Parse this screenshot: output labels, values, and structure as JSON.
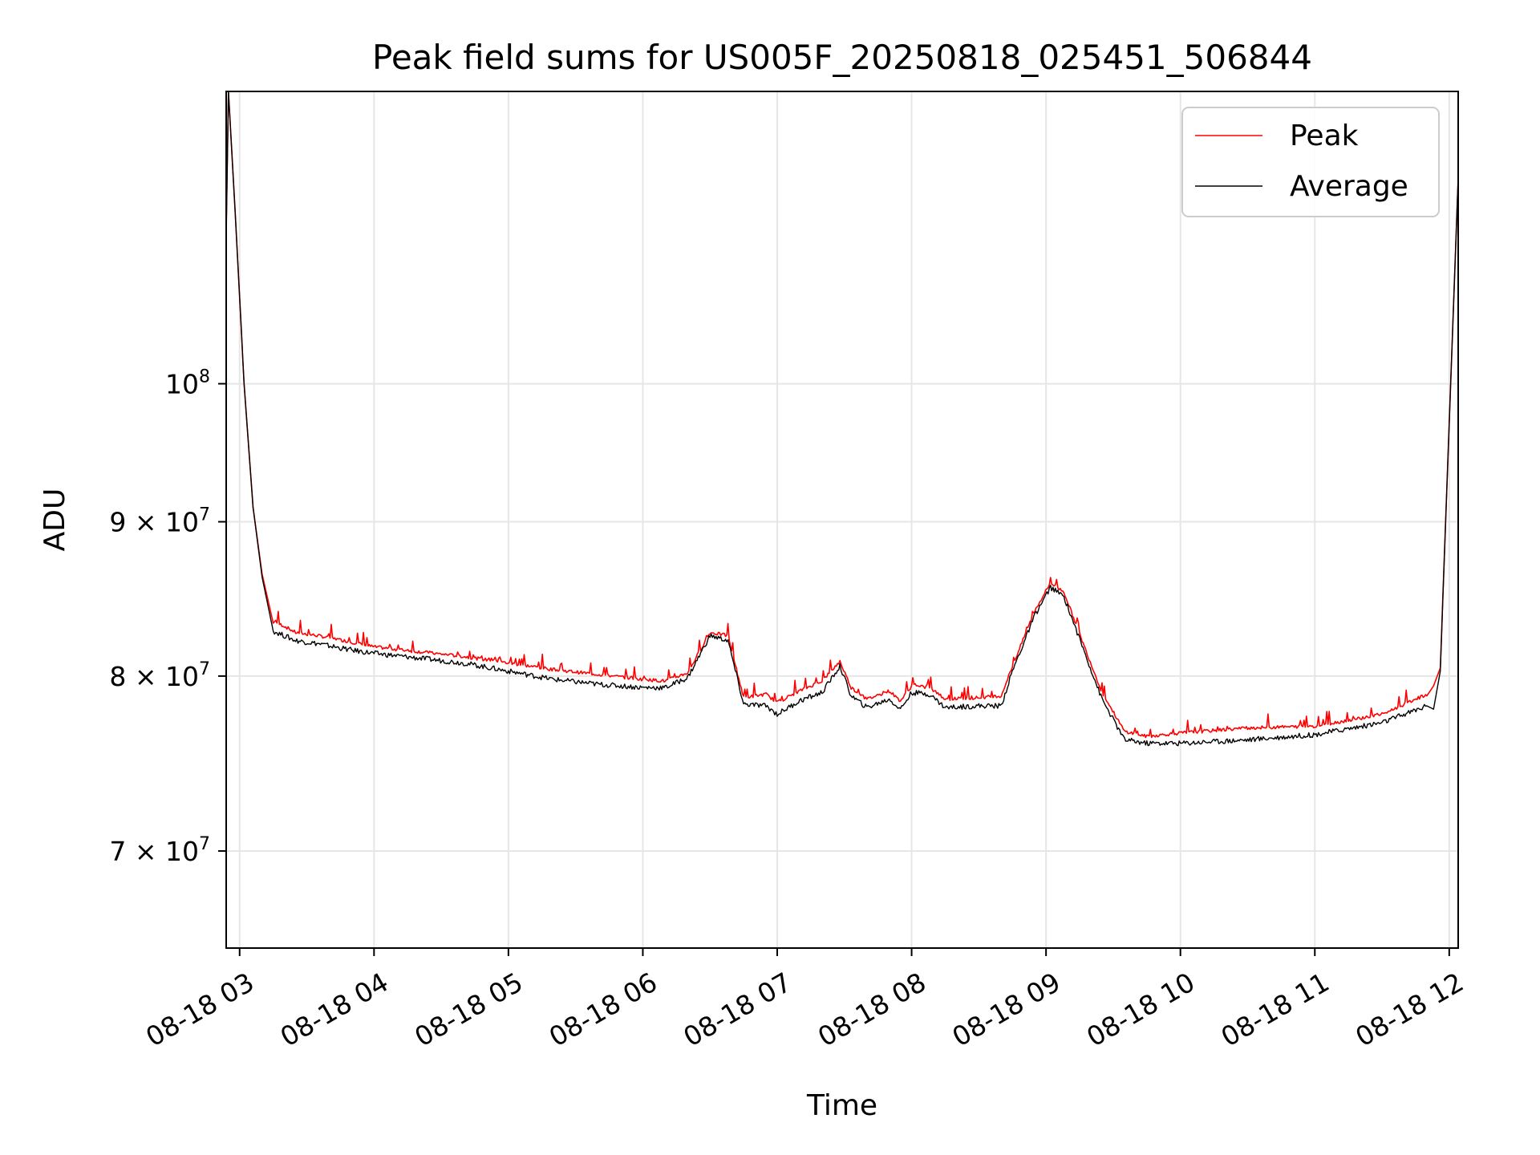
{
  "chart_data": {
    "type": "line",
    "title": "Peak field sums for US005F_20250818_025451_506844",
    "xlabel": "Time",
    "ylabel": "ADU",
    "yscale": "log",
    "grid": true,
    "legend_position": "top-right",
    "x_ticks": [
      "08-18 03",
      "08-18 04",
      "08-18 05",
      "08-18 06",
      "08-18 07",
      "08-18 08",
      "08-18 09",
      "08-18 10",
      "08-18 11",
      "08-18 12"
    ],
    "y_ticks": [
      {
        "value": 70000000,
        "label": "7 × 10",
        "exp": "7"
      },
      {
        "value": 80000000,
        "label": "8 × 10",
        "exp": "7"
      },
      {
        "value": 90000000,
        "label": "9 × 10",
        "exp": "7"
      },
      {
        "value": 100000000,
        "label": "10",
        "exp": "8"
      }
    ],
    "xlim": [
      "2025-08-18 02:54",
      "2025-08-18 12:04"
    ],
    "ylim": [
      65000000,
      125000000
    ],
    "series": [
      {
        "name": "Peak",
        "color": "#ff0000",
        "x": [
          "2025-08-18 02:54",
          "2025-08-18 02:55",
          "2025-08-18 02:58",
          "2025-08-18 03:02",
          "2025-08-18 03:06",
          "2025-08-18 03:10",
          "2025-08-18 03:15",
          "2025-08-18 03:20",
          "2025-08-18 03:25",
          "2025-08-18 03:35",
          "2025-08-18 03:50",
          "2025-08-18 04:00",
          "2025-08-18 04:20",
          "2025-08-18 04:40",
          "2025-08-18 05:00",
          "2025-08-18 05:20",
          "2025-08-18 05:40",
          "2025-08-18 06:00",
          "2025-08-18 06:10",
          "2025-08-18 06:20",
          "2025-08-18 06:30",
          "2025-08-18 06:38",
          "2025-08-18 06:45",
          "2025-08-18 06:55",
          "2025-08-18 07:00",
          "2025-08-18 07:10",
          "2025-08-18 07:20",
          "2025-08-18 07:28",
          "2025-08-18 07:33",
          "2025-08-18 07:40",
          "2025-08-18 07:50",
          "2025-08-18 07:55",
          "2025-08-18 08:00",
          "2025-08-18 08:08",
          "2025-08-18 08:15",
          "2025-08-18 08:30",
          "2025-08-18 08:40",
          "2025-08-18 08:45",
          "2025-08-18 08:55",
          "2025-08-18 09:02",
          "2025-08-18 09:08",
          "2025-08-18 09:15",
          "2025-08-18 09:25",
          "2025-08-18 09:35",
          "2025-08-18 09:45",
          "2025-08-18 10:00",
          "2025-08-18 10:30",
          "2025-08-18 11:00",
          "2025-08-18 11:30",
          "2025-08-18 11:50",
          "2025-08-18 11:53",
          "2025-08-18 11:56",
          "2025-08-18 12:00",
          "2025-08-18 12:04"
        ],
        "values": [
          112000000,
          125000000,
          114000000,
          100000000,
          91000000,
          86500000,
          83300000,
          83000000,
          82600000,
          82400000,
          82000000,
          81700000,
          81400000,
          81100000,
          80700000,
          80300000,
          80000000,
          79700000,
          79600000,
          80100000,
          82600000,
          82400000,
          78600000,
          78800000,
          78300000,
          79000000,
          79600000,
          80800000,
          79200000,
          78500000,
          79000000,
          78400000,
          79300000,
          79200000,
          78500000,
          78600000,
          78700000,
          80500000,
          84000000,
          85800000,
          85200000,
          82500000,
          78900000,
          76600000,
          76300000,
          76500000,
          76800000,
          76900000,
          77600000,
          78800000,
          79400000,
          80500000,
          97000000,
          117000000
        ]
      },
      {
        "name": "Average",
        "color": "#000000",
        "x": [
          "2025-08-18 02:54",
          "2025-08-18 02:55",
          "2025-08-18 02:58",
          "2025-08-18 03:02",
          "2025-08-18 03:06",
          "2025-08-18 03:10",
          "2025-08-18 03:15",
          "2025-08-18 03:20",
          "2025-08-18 03:25",
          "2025-08-18 03:35",
          "2025-08-18 03:50",
          "2025-08-18 04:00",
          "2025-08-18 04:20",
          "2025-08-18 04:40",
          "2025-08-18 05:00",
          "2025-08-18 05:20",
          "2025-08-18 05:40",
          "2025-08-18 06:00",
          "2025-08-18 06:10",
          "2025-08-18 06:20",
          "2025-08-18 06:30",
          "2025-08-18 06:38",
          "2025-08-18 06:45",
          "2025-08-18 06:55",
          "2025-08-18 07:00",
          "2025-08-18 07:10",
          "2025-08-18 07:20",
          "2025-08-18 07:28",
          "2025-08-18 07:33",
          "2025-08-18 07:40",
          "2025-08-18 07:50",
          "2025-08-18 07:55",
          "2025-08-18 08:00",
          "2025-08-18 08:08",
          "2025-08-18 08:15",
          "2025-08-18 08:30",
          "2025-08-18 08:40",
          "2025-08-18 08:45",
          "2025-08-18 08:55",
          "2025-08-18 09:02",
          "2025-08-18 09:08",
          "2025-08-18 09:15",
          "2025-08-18 09:25",
          "2025-08-18 09:35",
          "2025-08-18 09:45",
          "2025-08-18 10:00",
          "2025-08-18 10:30",
          "2025-08-18 11:00",
          "2025-08-18 11:30",
          "2025-08-18 11:50",
          "2025-08-18 11:53",
          "2025-08-18 11:56",
          "2025-08-18 12:00",
          "2025-08-18 12:04"
        ],
        "values": [
          112000000,
          125000000,
          114000000,
          100000000,
          91000000,
          86300000,
          82800000,
          82500000,
          82200000,
          82000000,
          81600000,
          81400000,
          81100000,
          80800000,
          80300000,
          79800000,
          79500000,
          79300000,
          79300000,
          79900000,
          82500000,
          82200000,
          78300000,
          78200000,
          77700000,
          78500000,
          79000000,
          80600000,
          78800000,
          78100000,
          78600000,
          78000000,
          79000000,
          78900000,
          78100000,
          78200000,
          78200000,
          80300000,
          83800000,
          85600000,
          85000000,
          82300000,
          78600000,
          76200000,
          76000000,
          76000000,
          76200000,
          76500000,
          77200000,
          78200000,
          78000000,
          80300000,
          97000000,
          117000000
        ]
      }
    ]
  }
}
